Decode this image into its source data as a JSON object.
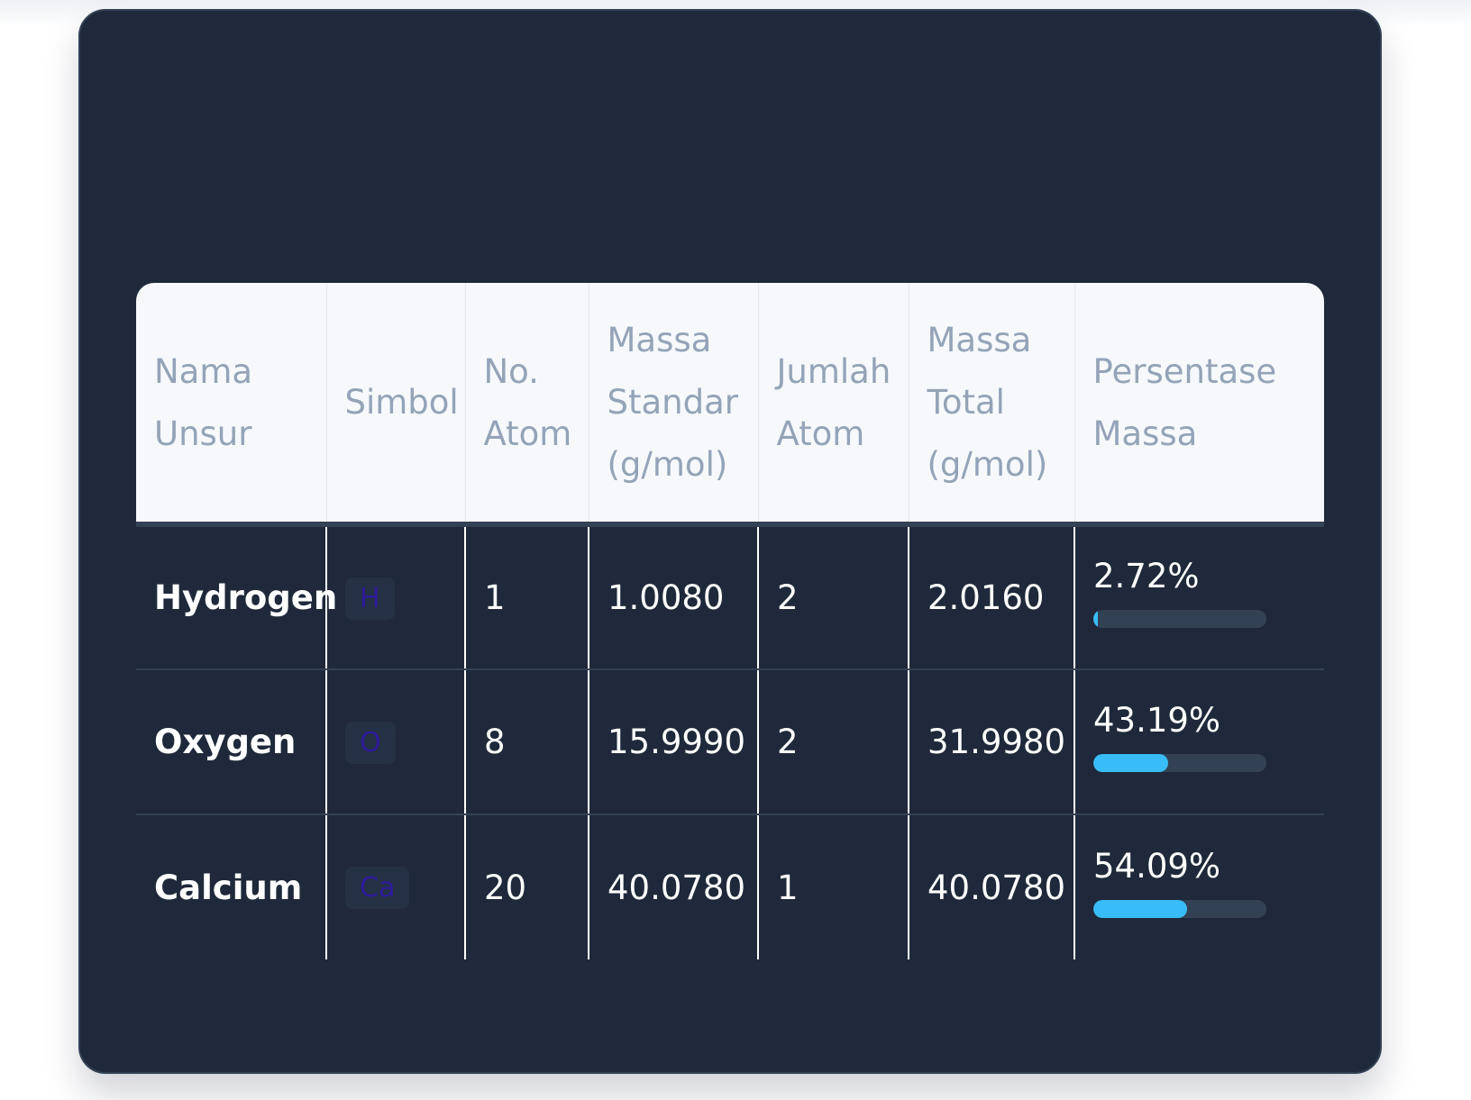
{
  "card": {
    "title": ""
  },
  "table": {
    "headers": {
      "name": "Nama Unsur",
      "symbol": "Simbol",
      "atomic_number": "No. Atom",
      "standard_mass": "Massa Standar (g/mol)",
      "atom_count": "Jumlah Atom",
      "total_mass": "Massa Total (g/mol)",
      "mass_percent": "Persentase Massa"
    },
    "rows": [
      {
        "name": "Hydrogen",
        "symbol": "H",
        "atomic_number": "1",
        "standard_mass": "1.0080",
        "atom_count": "2",
        "total_mass": "2.0160",
        "mass_percent": "2.72%",
        "mass_fraction": 0.0272
      },
      {
        "name": "Oxygen",
        "symbol": "O",
        "atomic_number": "8",
        "standard_mass": "15.9990",
        "atom_count": "2",
        "total_mass": "31.9980",
        "mass_percent": "43.19%",
        "mass_fraction": 0.4319
      },
      {
        "name": "Calcium",
        "symbol": "Ca",
        "atomic_number": "20",
        "standard_mass": "40.0780",
        "atom_count": "1",
        "total_mass": "40.0780",
        "mass_percent": "54.09%",
        "mass_fraction": 0.5409
      }
    ]
  },
  "colors": {
    "card_background": "#1f293b",
    "header_background": "#f6f8fb",
    "header_text": "#94a3b8",
    "bar_fill": "#38bdf8",
    "bar_track": "#334155",
    "symbol_text": "#2e1a9c"
  }
}
